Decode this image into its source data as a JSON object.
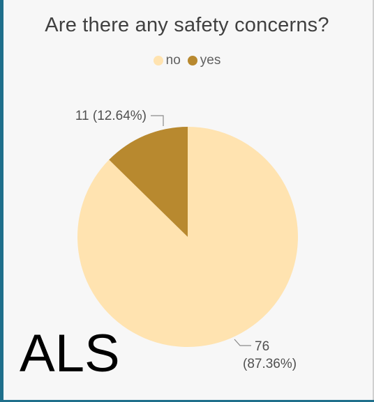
{
  "title": "Are there any safety concerns?",
  "legend": [
    {
      "label": "no",
      "color": "#ffe3b0"
    },
    {
      "label": "yes",
      "color": "#b8892f"
    }
  ],
  "overlay_text": "ALS",
  "chart_data": {
    "type": "pie",
    "title": "Are there any safety concerns?",
    "legend_placement": "top",
    "categories": [
      "no",
      "yes"
    ],
    "values": [
      76,
      11
    ],
    "percentages": [
      87.36,
      12.64
    ],
    "colors": [
      "#ffe3b0",
      "#b8892f"
    ],
    "data_labels": [
      {
        "category": "no",
        "count": "76",
        "percent": "(87.36%)"
      },
      {
        "category": "yes",
        "text": "11 (12.64%)"
      }
    ]
  }
}
